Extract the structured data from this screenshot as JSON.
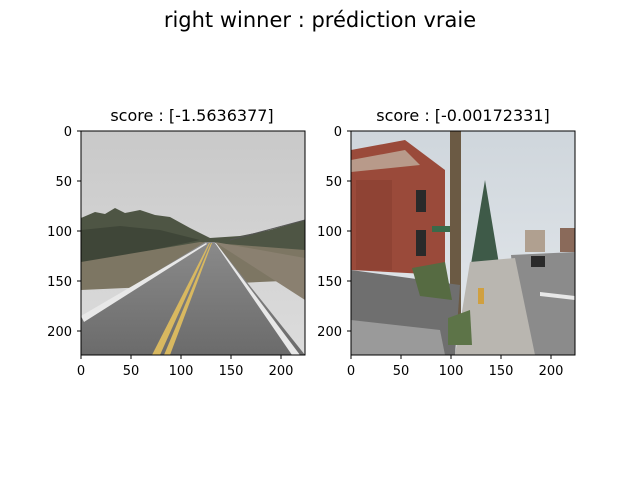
{
  "figure": {
    "suptitle": "right winner : prédiction vraie"
  },
  "panels": [
    {
      "title": "score : [-1.5636377]",
      "image_description_icon": "rural-road-photo",
      "x_ticks": [
        "0",
        "50",
        "100",
        "150",
        "200"
      ],
      "y_ticks": [
        "0",
        "50",
        "100",
        "150",
        "200"
      ]
    },
    {
      "title": "score : [-0.00172331]",
      "image_description_icon": "urban-street-photo",
      "x_ticks": [
        "0",
        "50",
        "100",
        "150",
        "200"
      ],
      "y_ticks": [
        "0",
        "50",
        "100",
        "150",
        "200"
      ]
    }
  ]
}
